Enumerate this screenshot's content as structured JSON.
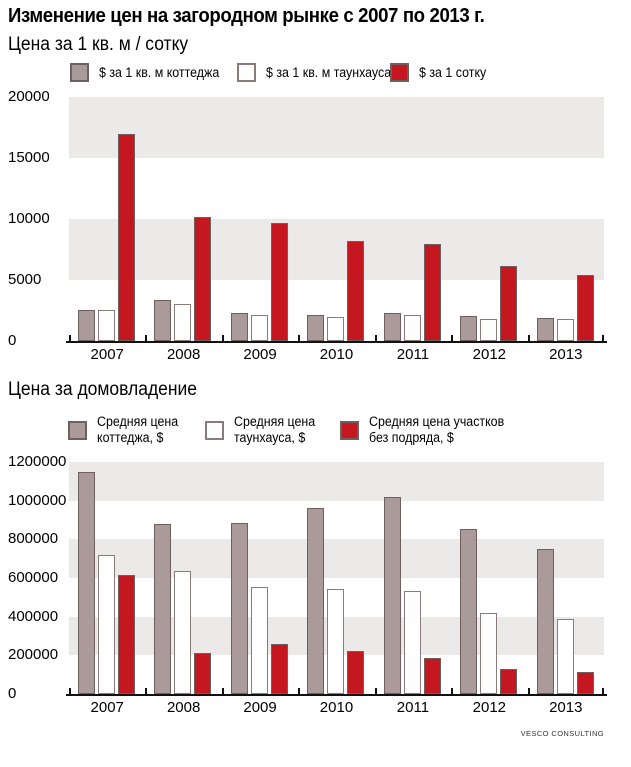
{
  "title": "Изменение цен на загородном рынке с 2007 по 2013 г.",
  "source": "VESCO CONSULTING",
  "colors": {
    "cottage_fill": "#ab9a9a",
    "cottage_border": "#6f5f5f",
    "townhouse_fill": "#fefefe",
    "townhouse_border": "#8a7a7a",
    "land_fill": "#c4171f",
    "land_border": "#6f5f5f",
    "band": "#ece9e9",
    "axis": "#111111"
  },
  "chart_data": [
    {
      "type": "bar",
      "title": "Цена за 1 кв. м / сотку",
      "categories": [
        "2007",
        "2008",
        "2009",
        "2010",
        "2011",
        "2012",
        "2013"
      ],
      "ylim": [
        0,
        20000
      ],
      "ytick_step": 5000,
      "grid": "alternating horizontal bands",
      "legend_position": "top",
      "series": [
        {
          "color": "cottage",
          "name_lines": [
            "$ за 1 кв. м коттеджа"
          ],
          "values": [
            2550,
            3400,
            2300,
            2150,
            2300,
            2050,
            1900
          ]
        },
        {
          "color": "townhouse",
          "name_lines": [
            "$ за 1 кв. м таунхауса"
          ],
          "values": [
            2500,
            3000,
            2100,
            2000,
            2100,
            1800,
            1800
          ]
        },
        {
          "color": "land",
          "name_lines": [
            "$ за 1 сотку"
          ],
          "values": [
            17000,
            10150,
            9650,
            8200,
            7950,
            6150,
            5450
          ]
        }
      ]
    },
    {
      "type": "bar",
      "title": "Цена за домовладение",
      "categories": [
        "2007",
        "2008",
        "2009",
        "2010",
        "2011",
        "2012",
        "2013"
      ],
      "ylim": [
        0,
        1200000
      ],
      "ytick_step": 200000,
      "grid": "alternating horizontal bands",
      "legend_position": "top",
      "series": [
        {
          "color": "cottage",
          "name_lines": [
            "Средняя цена",
            "коттеджа, $"
          ],
          "values": [
            1150000,
            880000,
            885000,
            960000,
            1020000,
            855000,
            750000
          ]
        },
        {
          "color": "townhouse",
          "name_lines": [
            "Средняя цена",
            "таунхауса, $"
          ],
          "values": [
            720000,
            635000,
            555000,
            545000,
            535000,
            420000,
            390000
          ]
        },
        {
          "color": "land",
          "name_lines": [
            "Средняя цена участков",
            "без подряда, $"
          ],
          "values": [
            615000,
            210000,
            260000,
            220000,
            185000,
            130000,
            115000
          ]
        }
      ]
    }
  ]
}
